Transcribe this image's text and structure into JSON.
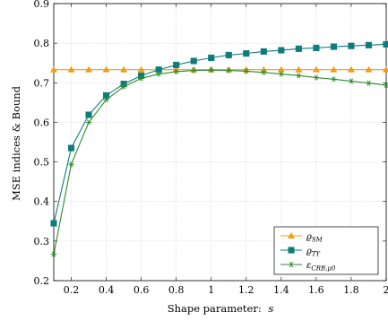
{
  "chart_data": {
    "type": "line",
    "xlabel_prefix": "Shape parameter:",
    "xlabel_var": "s",
    "ylabel": "MSE indices & Bound",
    "xlim": [
      0.1,
      2.0
    ],
    "ylim": [
      0.2,
      0.9
    ],
    "xticks": [
      0.2,
      0.4,
      0.6,
      0.8,
      1.0,
      1.2,
      1.4,
      1.6,
      1.8,
      2.0
    ],
    "xtick_labels": [
      "0.2",
      "0.4",
      "0.6",
      "0.8",
      "1",
      "1.2",
      "1.4",
      "1.6",
      "1.8",
      "2"
    ],
    "yticks": [
      0.2,
      0.3,
      0.4,
      0.5,
      0.6,
      0.7,
      0.8,
      0.9
    ],
    "ytick_labels": [
      "0.2",
      "0.3",
      "0.4",
      "0.5",
      "0.6",
      "0.7",
      "0.8",
      "0.9"
    ],
    "grid": true,
    "legend_position": "bottom-right",
    "x": [
      0.1,
      0.2,
      0.3,
      0.4,
      0.5,
      0.6,
      0.7,
      0.8,
      0.9,
      1.0,
      1.1,
      1.2,
      1.3,
      1.4,
      1.5,
      1.6,
      1.7,
      1.8,
      1.9,
      2.0
    ],
    "series": [
      {
        "name": "ϱSM",
        "name_main": "ϱ",
        "name_sub": "SM",
        "color": "#f39c12",
        "marker": "triangle",
        "values": [
          0.733,
          0.733,
          0.733,
          0.733,
          0.733,
          0.733,
          0.733,
          0.733,
          0.733,
          0.733,
          0.733,
          0.733,
          0.733,
          0.733,
          0.733,
          0.733,
          0.733,
          0.733,
          0.733,
          0.733
        ]
      },
      {
        "name": "ϱTY",
        "name_main": "ϱ",
        "name_sub": "TY",
        "color": "#0e7c7b",
        "marker": "square",
        "values": [
          0.345,
          0.535,
          0.619,
          0.668,
          0.697,
          0.718,
          0.733,
          0.745,
          0.755,
          0.763,
          0.77,
          0.774,
          0.779,
          0.782,
          0.786,
          0.788,
          0.791,
          0.793,
          0.795,
          0.797
        ]
      },
      {
        "name": "εCRB,μ0",
        "name_main": "ε",
        "name_sub": "CRB,μ0",
        "color": "#2e8b2e",
        "marker": "star",
        "values": [
          0.267,
          0.494,
          0.6,
          0.657,
          0.69,
          0.711,
          0.722,
          0.728,
          0.731,
          0.732,
          0.731,
          0.729,
          0.726,
          0.722,
          0.718,
          0.713,
          0.709,
          0.704,
          0.699,
          0.694
        ]
      }
    ]
  }
}
